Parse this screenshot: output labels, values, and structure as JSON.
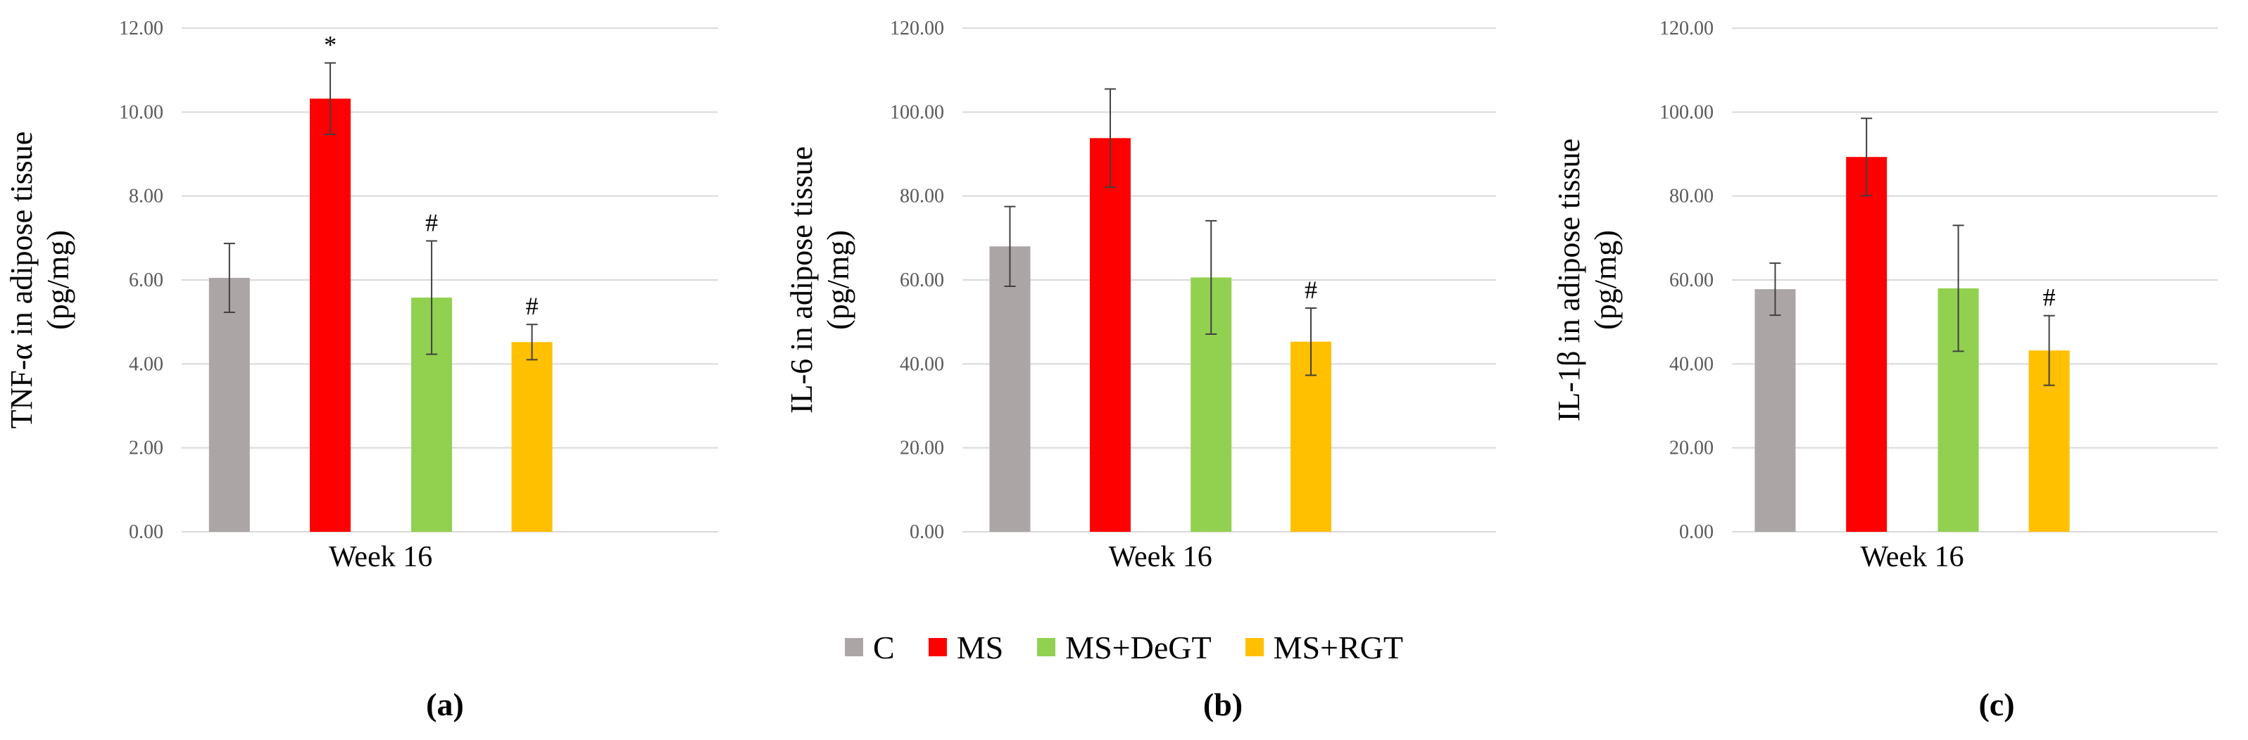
{
  "chart_data": [
    {
      "type": "bar",
      "panel_label": "(a)",
      "ylabel_line1": "TNF-α in adipose tissue",
      "ylabel_line2": "(pg/mg)",
      "xlabel": "Week 16",
      "ylim": [
        0,
        12
      ],
      "yticks": [
        "0.00",
        "2.00",
        "4.00",
        "6.00",
        "8.00",
        "10.00",
        "12.00"
      ],
      "ytick_values": [
        0,
        2,
        4,
        6,
        8,
        10,
        12
      ],
      "grid": true,
      "series": [
        {
          "name": "C",
          "value": 6.05,
          "err": 0.82,
          "mark": ""
        },
        {
          "name": "MS",
          "value": 10.32,
          "err": 0.85,
          "mark": "*"
        },
        {
          "name": "MS+DeGT",
          "value": 5.58,
          "err": 1.35,
          "mark": "#"
        },
        {
          "name": "MS+RGT",
          "value": 4.52,
          "err": 0.42,
          "mark": "#"
        }
      ]
    },
    {
      "type": "bar",
      "panel_label": "(b)",
      "ylabel_line1": "IL-6 in adipose tissue",
      "ylabel_line2": "(pg/mg)",
      "xlabel": "Week 16",
      "ylim": [
        0,
        120
      ],
      "yticks": [
        "0.00",
        "20.00",
        "40.00",
        "60.00",
        "80.00",
        "100.00",
        "120.00"
      ],
      "ytick_values": [
        0,
        20,
        40,
        60,
        80,
        100,
        120
      ],
      "grid": true,
      "series": [
        {
          "name": "C",
          "value": 68.0,
          "err": 9.5,
          "mark": ""
        },
        {
          "name": "MS",
          "value": 93.8,
          "err": 11.7,
          "mark": ""
        },
        {
          "name": "MS+DeGT",
          "value": 60.6,
          "err": 13.5,
          "mark": ""
        },
        {
          "name": "MS+RGT",
          "value": 45.3,
          "err": 8.0,
          "mark": "#"
        }
      ]
    },
    {
      "type": "bar",
      "panel_label": "(c)",
      "ylabel_line1": "IL-1β in adipose tissue",
      "ylabel_line2": "(pg/mg)",
      "xlabel": "Week 16",
      "ylim": [
        0,
        120
      ],
      "yticks": [
        "0.00",
        "20.00",
        "40.00",
        "60.00",
        "80.00",
        "100.00",
        "120.00"
      ],
      "ytick_values": [
        0,
        20,
        40,
        60,
        80,
        100,
        120
      ],
      "grid": true,
      "series": [
        {
          "name": "C",
          "value": 57.8,
          "err": 6.2,
          "mark": ""
        },
        {
          "name": "MS",
          "value": 89.3,
          "err": 9.2,
          "mark": ""
        },
        {
          "name": "MS+DeGT",
          "value": 58.0,
          "err": 15.0,
          "mark": ""
        },
        {
          "name": "MS+RGT",
          "value": 43.2,
          "err": 8.3,
          "mark": "#"
        }
      ]
    }
  ],
  "legend": [
    {
      "label": "C",
      "color": "#aba5a5"
    },
    {
      "label": "MS",
      "color": "#ff0000"
    },
    {
      "label": "MS+DeGT",
      "color": "#92d050"
    },
    {
      "label": "MS+RGT",
      "color": "#ffc000"
    }
  ]
}
